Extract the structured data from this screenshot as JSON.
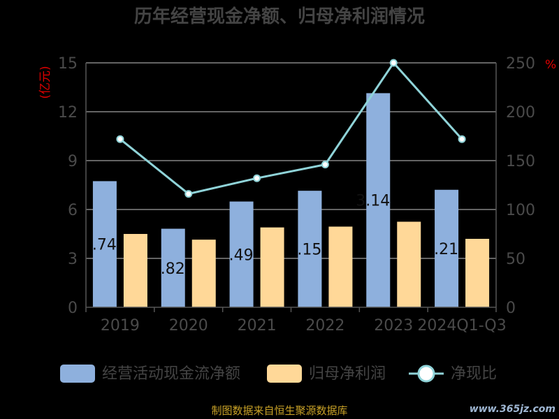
{
  "chart_data": {
    "type": "bar",
    "title": "历年经营现金净额、归母净利润情况",
    "categories": [
      "2019",
      "2020",
      "2021",
      "2022",
      "2023",
      "2024Q1-Q3"
    ],
    "y_left_unit": "(亿元)",
    "y_right_unit": "%",
    "y_left_ticks": [
      "0",
      "3",
      "6",
      "9",
      "12",
      "15"
    ],
    "y_right_ticks": [
      "0",
      "50",
      "100",
      "150",
      "200",
      "250"
    ],
    "ylim_left": [
      0,
      15
    ],
    "ylim_right": [
      0,
      250
    ],
    "series": [
      {
        "name": "经营活动现金流净额",
        "type": "bar",
        "axis": "left",
        "color": "#8eb0dd",
        "values": [
          7.74,
          4.82,
          6.49,
          7.15,
          13.14,
          7.21
        ],
        "labels": [
          ".74",
          ".82",
          ".49",
          ".15",
          "3.14",
          ".21"
        ]
      },
      {
        "name": "归母净利润",
        "type": "bar",
        "axis": "left",
        "color": "#ffd898",
        "values": [
          4.5,
          4.15,
          4.9,
          4.95,
          5.25,
          4.2
        ]
      },
      {
        "name": "净现比",
        "type": "line",
        "axis": "right",
        "color": "#8fd3d8",
        "values": [
          172,
          116,
          132,
          146,
          250,
          172
        ]
      }
    ],
    "legend_position": "bottom",
    "grid": true
  },
  "footer": "制图数据来自恒生聚源数据库",
  "watermark": "www.365jz.com"
}
